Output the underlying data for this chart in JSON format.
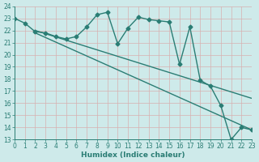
{
  "xlabel": "Humidex (Indice chaleur)",
  "xlim": [
    0,
    23
  ],
  "ylim": [
    13,
    24
  ],
  "yticks": [
    13,
    14,
    15,
    16,
    17,
    18,
    19,
    20,
    21,
    22,
    23,
    24
  ],
  "xticks": [
    0,
    1,
    2,
    3,
    4,
    5,
    6,
    7,
    8,
    9,
    10,
    11,
    12,
    13,
    14,
    15,
    16,
    17,
    18,
    19,
    20,
    21,
    22,
    23
  ],
  "bg_color": "#ceeaea",
  "grid_color": "#b8d8d8",
  "line_color": "#2a7d74",
  "line1_x": [
    0,
    1,
    2,
    3,
    4,
    5,
    6,
    7,
    8,
    9,
    10,
    11,
    12,
    13,
    14,
    15,
    16,
    17,
    18,
    19,
    20,
    21,
    22,
    23
  ],
  "line1_y": [
    23.0,
    22.6,
    21.9,
    21.8,
    21.5,
    21.3,
    21.5,
    22.3,
    23.3,
    23.5,
    20.9,
    22.2,
    23.1,
    22.9,
    22.8,
    22.7,
    19.2,
    22.3,
    17.9,
    17.4,
    15.8,
    13.0,
    14.0,
    13.8
  ],
  "line2_x": [
    2,
    23
  ],
  "line2_y": [
    22.0,
    16.4
  ],
  "line3_x": [
    2,
    23
  ],
  "line3_y": [
    21.8,
    13.8
  ],
  "marker": "D",
  "markersize": 2.5,
  "linewidth": 1.0,
  "tick_fontsize": 5.5,
  "xlabel_fontsize": 6.5
}
